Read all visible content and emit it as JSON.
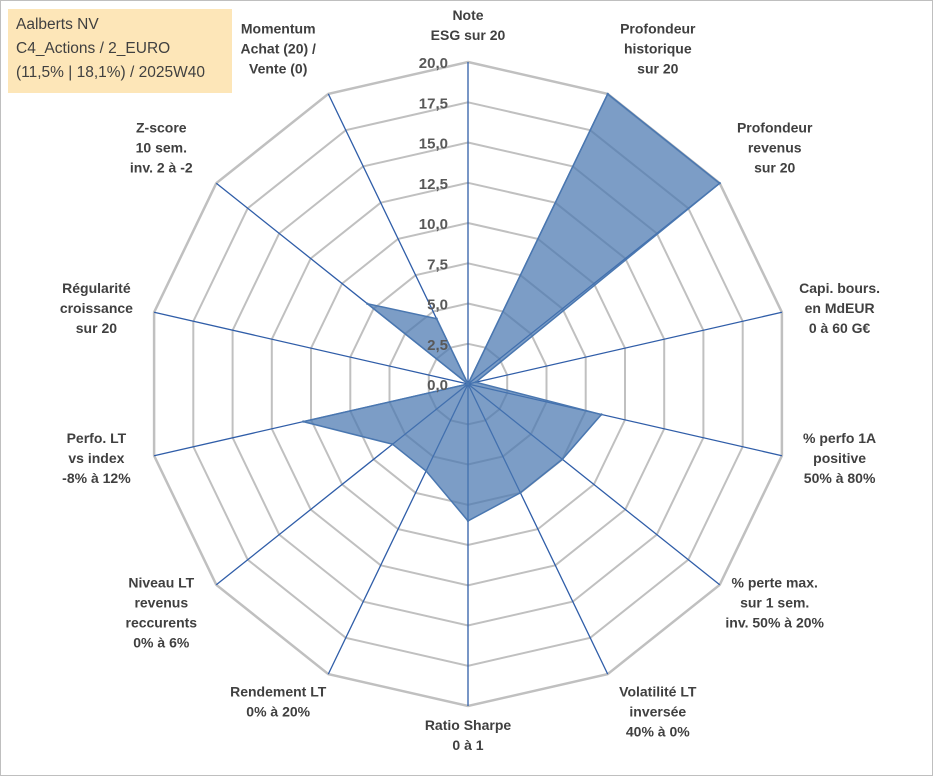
{
  "title_box": {
    "line1": "Aalberts NV",
    "line2": "C4_Actions / 2_EURO",
    "line3": "(11,5% | 18,1%) / 2025W40"
  },
  "chart_data": {
    "type": "radar",
    "rmin": 0,
    "rmax": 20,
    "ticks": [
      "0,0",
      "2,5",
      "5,0",
      "7,5",
      "10,0",
      "12,5",
      "15,0",
      "17,5",
      "20,0"
    ],
    "categories": [
      [
        "Note",
        "ESG sur 20"
      ],
      [
        "Profondeur",
        "historique",
        "sur 20"
      ],
      [
        "Profondeur",
        "revenus",
        "sur 20"
      ],
      [
        "Capi. bours.",
        "en MdEUR",
        "0 à 60 G€"
      ],
      [
        "% perfo 1A",
        "positive",
        "50% à 80%"
      ],
      [
        "% perte max.",
        "sur 1 sem.",
        "inv. 50% à 20%"
      ],
      [
        "Volatilité LT",
        "inversée",
        "40% à 0%"
      ],
      [
        "Ratio Sharpe",
        "0 à 1"
      ],
      [
        "Rendement LT",
        "0% à 20%"
      ],
      [
        "Niveau LT",
        "revenus",
        "reccurents",
        "0% à 6%"
      ],
      [
        "Perfo. LT",
        "vs index",
        "-8% à 12%"
      ],
      [
        "Régularité",
        "croissance",
        "sur 20"
      ],
      [
        "Z-score",
        "10 sem.",
        "inv. 2 à -2"
      ],
      [
        "Momentum",
        "Achat (20) /",
        "Vente (0)"
      ]
    ],
    "series": [
      {
        "values": [
          0,
          20,
          20,
          0.5,
          8.5,
          7.5,
          7.5,
          8.5,
          6,
          6,
          10.5,
          0,
          8,
          4.5
        ]
      }
    ],
    "colors": {
      "fill": "#4a77b0",
      "stroke": "#4a77b0",
      "grid": "#c0c0c0",
      "spoke": "#2f5da8"
    }
  }
}
